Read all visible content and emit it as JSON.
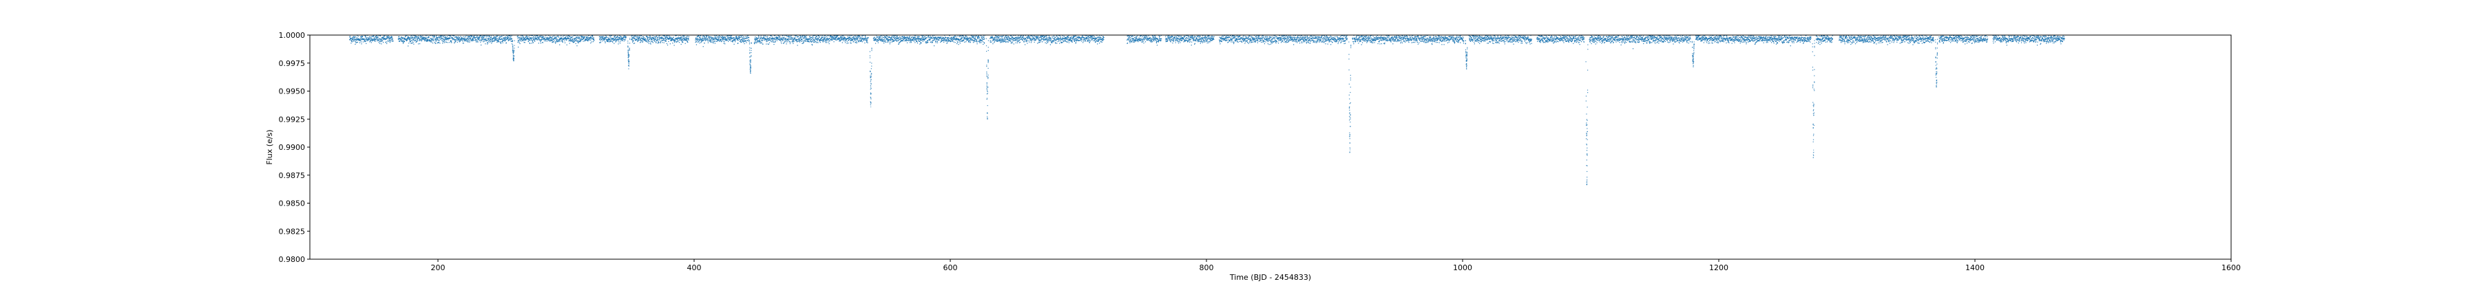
{
  "chart_data": {
    "type": "scatter",
    "title": "",
    "xlabel": "Time (BJD - 2454833)",
    "ylabel": "Flux (e/s)",
    "xlim": [
      100,
      1600
    ],
    "ylim": [
      0.98,
      1.0
    ],
    "xticks": [
      200,
      400,
      600,
      800,
      1000,
      1200,
      1400,
      1600
    ],
    "xtick_labels": [
      "200",
      "400",
      "600",
      "800",
      "1000",
      "1200",
      "1400",
      "1600"
    ],
    "yticks": [
      0.98,
      0.9825,
      0.985,
      0.9875,
      0.99,
      0.9925,
      0.995,
      0.9975,
      1.0
    ],
    "ytick_labels": [
      "0.9800",
      "0.9825",
      "0.9850",
      "0.9875",
      "0.9900",
      "0.9925",
      "0.9950",
      "0.9975",
      "1.0000"
    ],
    "grid": false,
    "series_color": "#1f77b4",
    "baseline_flux": 0.99965,
    "observing_segments": [
      [
        131,
        165
      ],
      [
        169,
        258
      ],
      [
        262,
        322
      ],
      [
        326,
        347
      ],
      [
        351,
        396
      ],
      [
        401,
        443
      ],
      [
        447,
        536
      ],
      [
        540,
        627
      ],
      [
        631,
        720
      ],
      [
        738,
        765
      ],
      [
        768,
        806
      ],
      [
        810,
        910
      ],
      [
        914,
        1001
      ],
      [
        1005,
        1054
      ],
      [
        1058,
        1095
      ],
      [
        1099,
        1178
      ],
      [
        1182,
        1272
      ],
      [
        1276,
        1289
      ],
      [
        1294,
        1368
      ],
      [
        1372,
        1410
      ],
      [
        1414,
        1470
      ]
    ],
    "transit_dips": [
      {
        "t": 259,
        "min_flux": 0.9975
      },
      {
        "t": 349,
        "min_flux": 0.997
      },
      {
        "t": 444,
        "min_flux": 0.9965
      },
      {
        "t": 538,
        "min_flux": 0.9935
      },
      {
        "t": 629,
        "min_flux": 0.9925
      },
      {
        "t": 912,
        "min_flux": 0.9895
      },
      {
        "t": 1003,
        "min_flux": 0.997
      },
      {
        "t": 1097,
        "min_flux": 0.9865
      },
      {
        "t": 1180,
        "min_flux": 0.9972
      },
      {
        "t": 1274,
        "min_flux": 0.989
      },
      {
        "t": 1370,
        "min_flux": 0.995
      }
    ]
  }
}
